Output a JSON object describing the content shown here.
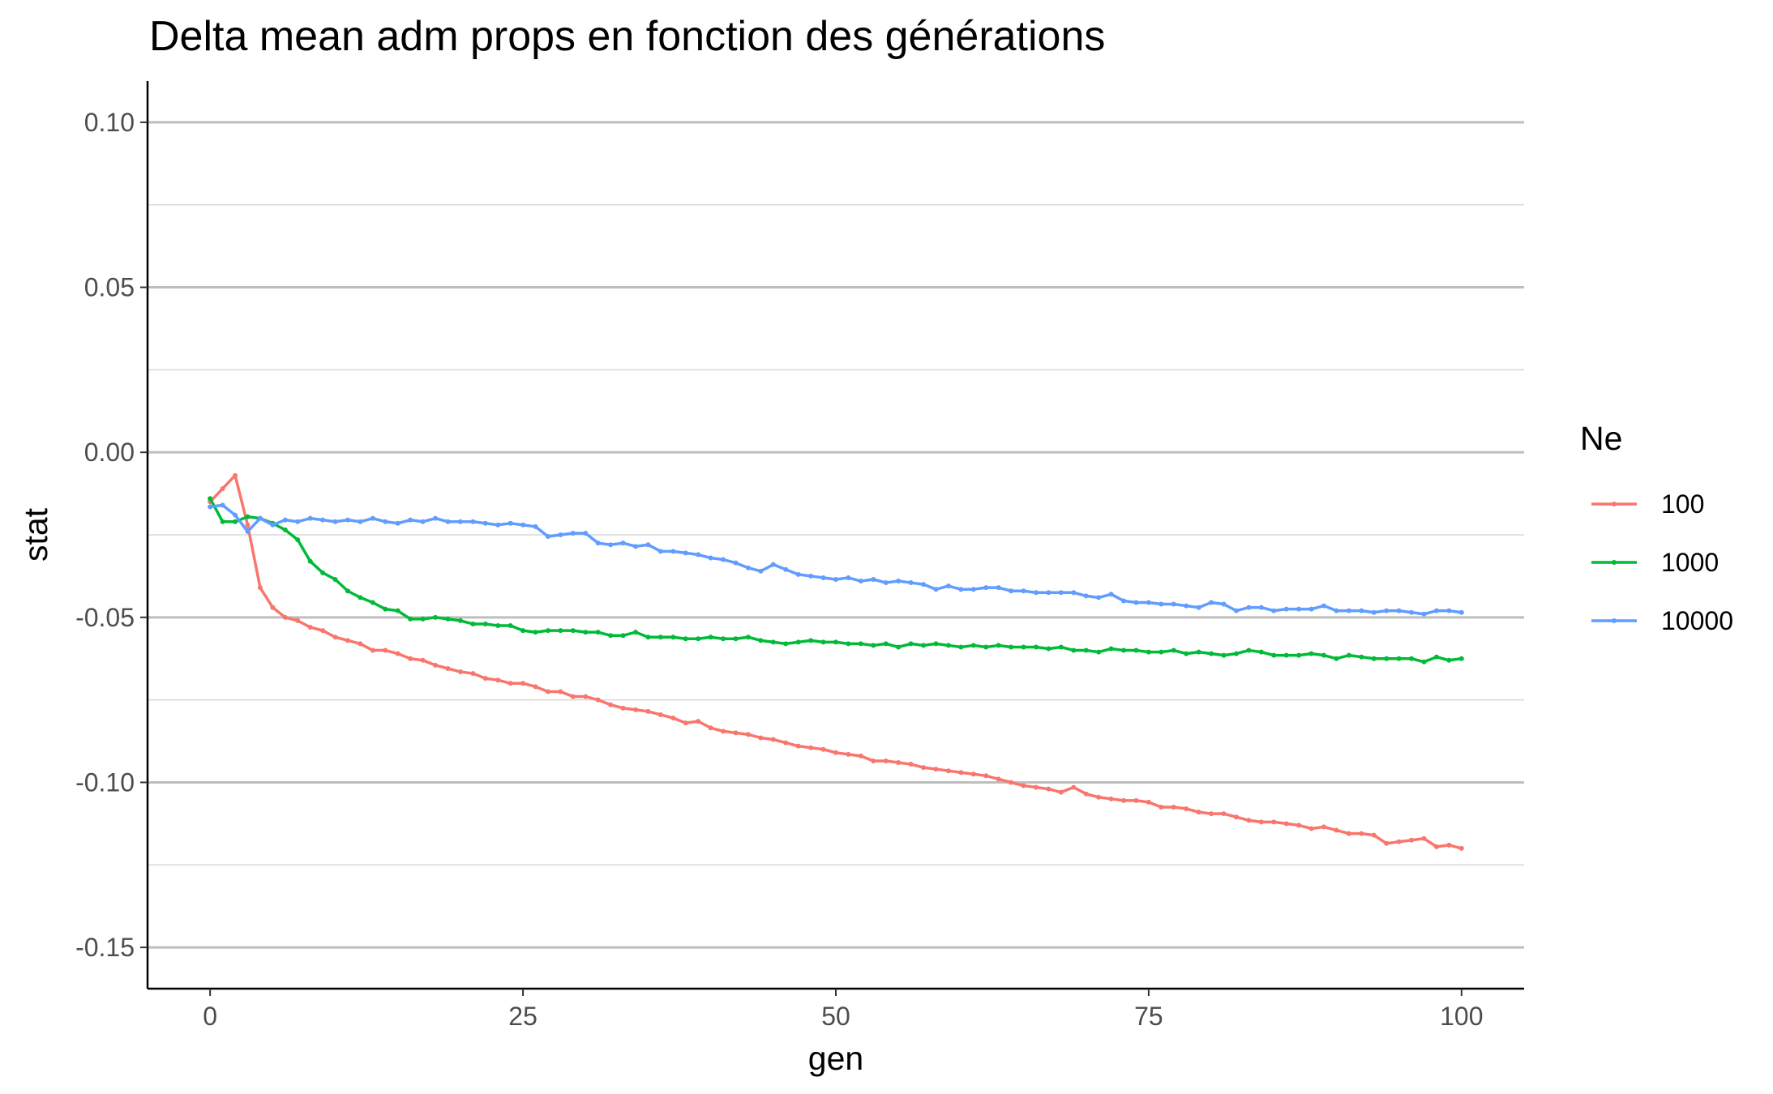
{
  "chart_data": {
    "type": "line",
    "title": "Delta mean adm props en fonction des générations",
    "xlabel": "gen",
    "ylabel": "stat",
    "xlim": [
      -5,
      105
    ],
    "ylim": [
      -0.1625,
      0.1125
    ],
    "x_ticks": [
      0,
      25,
      50,
      75,
      100
    ],
    "x_tick_labels": [
      "0",
      "25",
      "50",
      "75",
      "100"
    ],
    "y_ticks": [
      0.1,
      0.05,
      0.0,
      -0.05,
      -0.1,
      -0.15
    ],
    "y_tick_labels": [
      "0.10",
      "0.05",
      "0.00",
      "-0.05",
      "-0.10",
      "-0.15"
    ],
    "y_minor_ticks": [
      0.075,
      0.025,
      -0.025,
      -0.075,
      -0.125
    ],
    "grid": "horizontal",
    "legend_title": "Ne",
    "legend_position": "right",
    "series": [
      {
        "name": "100",
        "color": "#F8766D",
        "x": [
          0,
          1,
          2,
          3,
          4,
          5,
          6,
          7,
          8,
          9,
          10,
          11,
          12,
          13,
          14,
          15,
          16,
          17,
          18,
          19,
          20,
          21,
          22,
          23,
          24,
          25,
          26,
          27,
          28,
          29,
          30,
          31,
          32,
          33,
          34,
          35,
          36,
          37,
          38,
          39,
          40,
          41,
          42,
          43,
          44,
          45,
          46,
          47,
          48,
          49,
          50,
          51,
          52,
          53,
          54,
          55,
          56,
          57,
          58,
          59,
          60,
          61,
          62,
          63,
          64,
          65,
          66,
          67,
          68,
          69,
          70,
          71,
          72,
          73,
          74,
          75,
          76,
          77,
          78,
          79,
          80,
          81,
          82,
          83,
          84,
          85,
          86,
          87,
          88,
          89,
          90,
          91,
          92,
          93,
          94,
          95,
          96,
          97,
          98,
          99,
          100
        ],
        "values": [
          -0.015,
          -0.011,
          -0.007,
          -0.022,
          -0.041,
          -0.047,
          -0.05,
          -0.051,
          -0.053,
          -0.054,
          -0.056,
          -0.057,
          -0.058,
          -0.06,
          -0.06,
          -0.061,
          -0.0625,
          -0.063,
          -0.0645,
          -0.0655,
          -0.0665,
          -0.067,
          -0.0685,
          -0.069,
          -0.07,
          -0.07,
          -0.071,
          -0.0725,
          -0.0725,
          -0.074,
          -0.074,
          -0.075,
          -0.0765,
          -0.0775,
          -0.078,
          -0.0785,
          -0.0795,
          -0.0805,
          -0.082,
          -0.0815,
          -0.0835,
          -0.0845,
          -0.085,
          -0.0855,
          -0.0865,
          -0.087,
          -0.088,
          -0.089,
          -0.0895,
          -0.09,
          -0.091,
          -0.0915,
          -0.092,
          -0.0935,
          -0.0935,
          -0.094,
          -0.0945,
          -0.0955,
          -0.096,
          -0.0965,
          -0.097,
          -0.0975,
          -0.098,
          -0.099,
          -0.1,
          -0.101,
          -0.1015,
          -0.102,
          -0.103,
          -0.1015,
          -0.1035,
          -0.1045,
          -0.105,
          -0.1055,
          -0.1055,
          -0.106,
          -0.1075,
          -0.1075,
          -0.108,
          -0.109,
          -0.1095,
          -0.1095,
          -0.1105,
          -0.1115,
          -0.112,
          -0.112,
          -0.1125,
          -0.113,
          -0.114,
          -0.1135,
          -0.1145,
          -0.1155,
          -0.1155,
          -0.116,
          -0.1185,
          -0.118,
          -0.1175,
          -0.117,
          -0.1195,
          -0.119,
          -0.12
        ]
      },
      {
        "name": "1000",
        "color": "#00BA38",
        "x": [
          0,
          1,
          2,
          3,
          4,
          5,
          6,
          7,
          8,
          9,
          10,
          11,
          12,
          13,
          14,
          15,
          16,
          17,
          18,
          19,
          20,
          21,
          22,
          23,
          24,
          25,
          26,
          27,
          28,
          29,
          30,
          31,
          32,
          33,
          34,
          35,
          36,
          37,
          38,
          39,
          40,
          41,
          42,
          43,
          44,
          45,
          46,
          47,
          48,
          49,
          50,
          51,
          52,
          53,
          54,
          55,
          56,
          57,
          58,
          59,
          60,
          61,
          62,
          63,
          64,
          65,
          66,
          67,
          68,
          69,
          70,
          71,
          72,
          73,
          74,
          75,
          76,
          77,
          78,
          79,
          80,
          81,
          82,
          83,
          84,
          85,
          86,
          87,
          88,
          89,
          90,
          91,
          92,
          93,
          94,
          95,
          96,
          97,
          98,
          99,
          100
        ],
        "values": [
          -0.014,
          -0.021,
          -0.021,
          -0.0195,
          -0.02,
          -0.0215,
          -0.0235,
          -0.0265,
          -0.033,
          -0.0365,
          -0.0385,
          -0.042,
          -0.044,
          -0.0455,
          -0.0475,
          -0.048,
          -0.0505,
          -0.0505,
          -0.05,
          -0.0505,
          -0.051,
          -0.052,
          -0.052,
          -0.0525,
          -0.0525,
          -0.054,
          -0.0545,
          -0.054,
          -0.054,
          -0.054,
          -0.0545,
          -0.0545,
          -0.0555,
          -0.0555,
          -0.0545,
          -0.056,
          -0.056,
          -0.056,
          -0.0565,
          -0.0565,
          -0.056,
          -0.0565,
          -0.0565,
          -0.056,
          -0.057,
          -0.0575,
          -0.058,
          -0.0575,
          -0.057,
          -0.0575,
          -0.0575,
          -0.058,
          -0.058,
          -0.0585,
          -0.058,
          -0.059,
          -0.058,
          -0.0585,
          -0.058,
          -0.0585,
          -0.059,
          -0.0585,
          -0.059,
          -0.0585,
          -0.059,
          -0.059,
          -0.059,
          -0.0595,
          -0.059,
          -0.06,
          -0.06,
          -0.0605,
          -0.0595,
          -0.06,
          -0.06,
          -0.0605,
          -0.0605,
          -0.06,
          -0.061,
          -0.0605,
          -0.061,
          -0.0615,
          -0.061,
          -0.06,
          -0.0605,
          -0.0615,
          -0.0615,
          -0.0615,
          -0.061,
          -0.0615,
          -0.0625,
          -0.0615,
          -0.062,
          -0.0625,
          -0.0625,
          -0.0625,
          -0.0625,
          -0.0635,
          -0.062,
          -0.063,
          -0.0625
        ]
      },
      {
        "name": "10000",
        "color": "#619CFF",
        "x": [
          0,
          1,
          2,
          3,
          4,
          5,
          6,
          7,
          8,
          9,
          10,
          11,
          12,
          13,
          14,
          15,
          16,
          17,
          18,
          19,
          20,
          21,
          22,
          23,
          24,
          25,
          26,
          27,
          28,
          29,
          30,
          31,
          32,
          33,
          34,
          35,
          36,
          37,
          38,
          39,
          40,
          41,
          42,
          43,
          44,
          45,
          46,
          47,
          48,
          49,
          50,
          51,
          52,
          53,
          54,
          55,
          56,
          57,
          58,
          59,
          60,
          61,
          62,
          63,
          64,
          65,
          66,
          67,
          68,
          69,
          70,
          71,
          72,
          73,
          74,
          75,
          76,
          77,
          78,
          79,
          80,
          81,
          82,
          83,
          84,
          85,
          86,
          87,
          88,
          89,
          90,
          91,
          92,
          93,
          94,
          95,
          96,
          97,
          98,
          99,
          100
        ],
        "values": [
          -0.0165,
          -0.016,
          -0.019,
          -0.024,
          -0.02,
          -0.022,
          -0.0205,
          -0.021,
          -0.02,
          -0.0205,
          -0.021,
          -0.0205,
          -0.021,
          -0.02,
          -0.021,
          -0.0215,
          -0.0205,
          -0.021,
          -0.02,
          -0.021,
          -0.021,
          -0.021,
          -0.0215,
          -0.022,
          -0.0215,
          -0.022,
          -0.0225,
          -0.0255,
          -0.025,
          -0.0245,
          -0.0245,
          -0.0275,
          -0.028,
          -0.0275,
          -0.0285,
          -0.028,
          -0.03,
          -0.03,
          -0.0305,
          -0.031,
          -0.032,
          -0.0325,
          -0.0335,
          -0.035,
          -0.036,
          -0.034,
          -0.0355,
          -0.037,
          -0.0375,
          -0.038,
          -0.0385,
          -0.038,
          -0.039,
          -0.0385,
          -0.0395,
          -0.039,
          -0.0395,
          -0.04,
          -0.0415,
          -0.0405,
          -0.0415,
          -0.0415,
          -0.041,
          -0.041,
          -0.042,
          -0.042,
          -0.0425,
          -0.0425,
          -0.0425,
          -0.0425,
          -0.0435,
          -0.044,
          -0.043,
          -0.045,
          -0.0455,
          -0.0455,
          -0.046,
          -0.046,
          -0.0465,
          -0.047,
          -0.0455,
          -0.046,
          -0.048,
          -0.047,
          -0.047,
          -0.048,
          -0.0475,
          -0.0475,
          -0.0475,
          -0.0465,
          -0.048,
          -0.048,
          -0.048,
          -0.0485,
          -0.048,
          -0.048,
          -0.0485,
          -0.049,
          -0.048,
          -0.048,
          -0.0485
        ]
      }
    ]
  }
}
